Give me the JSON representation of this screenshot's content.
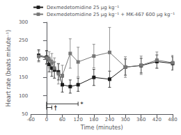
{
  "chart_data": {
    "type": "line",
    "title": "",
    "xlabel": "Time (minutes)",
    "ylabel": "Heart rate (beats minute⁻¹)",
    "xlim": [
      -60,
      480
    ],
    "ylim": [
      50,
      300
    ],
    "xticks": [
      -60,
      0,
      60,
      120,
      180,
      240,
      300,
      360,
      420,
      480
    ],
    "yticks": [
      50,
      100,
      150,
      200,
      250,
      300
    ],
    "grid": false,
    "legend": "upper right",
    "x": [
      -30,
      0,
      10,
      20,
      30,
      45,
      60,
      90,
      120,
      180,
      240,
      300,
      360,
      420,
      480
    ],
    "series": [
      {
        "name": "Dexmedetomidine 25 μg kg⁻¹",
        "color": "#1a1a1a",
        "marker": "square",
        "line_style": "solid",
        "values": [
          210,
          205,
          185,
          175,
          170,
          165,
          130,
          125,
          130,
          150,
          145,
          178,
          182,
          193,
          188
        ],
        "yerr": [
          15,
          18,
          20,
          22,
          22,
          22,
          20,
          18,
          18,
          22,
          22,
          22,
          20,
          18,
          18
        ]
      },
      {
        "name": "Dexmedetomidine 25 μg kg⁻¹ + MK-467 600 μg kg⁻¹",
        "color": "#777777",
        "marker": "square",
        "line_style": "solid",
        "values": [
          207,
          203,
          198,
          190,
          175,
          160,
          155,
          215,
          192,
          208,
          218,
          178,
          183,
          197,
          190
        ],
        "yerr": [
          15,
          18,
          22,
          25,
          28,
          28,
          28,
          40,
          40,
          32,
          68,
          28,
          25,
          22,
          20
        ]
      }
    ],
    "annotations": [
      {
        "x_start": 0,
        "x_end": 120,
        "y": 78,
        "label": "*"
      },
      {
        "x_start": 0,
        "x_end": 20,
        "y": 68,
        "label": "†"
      }
    ]
  }
}
